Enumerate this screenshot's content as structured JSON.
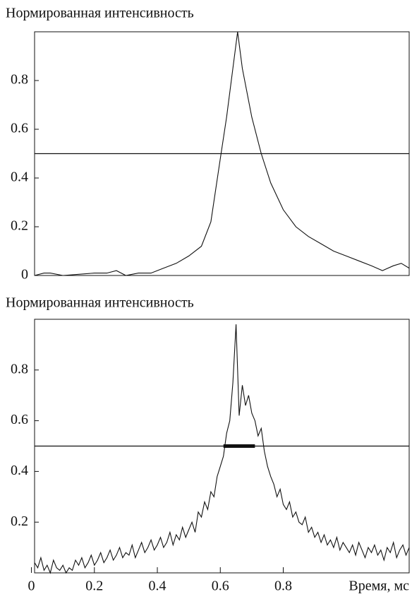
{
  "chart_data": [
    {
      "type": "line",
      "title": "Нормированная интенсивность",
      "x": [
        0.01,
        0.04,
        0.06,
        0.1,
        0.2,
        0.24,
        0.27,
        0.3,
        0.34,
        0.38,
        0.42,
        0.46,
        0.5,
        0.54,
        0.57,
        0.6,
        0.62,
        0.64,
        0.655,
        0.67,
        0.7,
        0.73,
        0.76,
        0.8,
        0.84,
        0.88,
        0.92,
        0.96,
        1.0,
        1.04,
        1.08,
        1.115,
        1.15,
        1.175,
        1.2
      ],
      "values": [
        0.0,
        0.01,
        0.01,
        0.0,
        0.01,
        0.01,
        0.02,
        0.0,
        0.01,
        0.01,
        0.03,
        0.05,
        0.08,
        0.12,
        0.22,
        0.48,
        0.65,
        0.85,
        1.0,
        0.85,
        0.65,
        0.5,
        0.38,
        0.27,
        0.2,
        0.16,
        0.13,
        0.1,
        0.08,
        0.06,
        0.04,
        0.02,
        0.04,
        0.05,
        0.03
      ],
      "color": "#111111",
      "xlim": [
        0.01,
        1.2
      ],
      "ylim": [
        0,
        1
      ],
      "yticks": [
        0,
        0.2,
        0.4,
        0.6,
        0.8
      ],
      "hline": 0.5
    },
    {
      "type": "line",
      "title": "Нормированная интенсивность",
      "x_label": "Время, мс",
      "x": [
        0.01,
        0.02,
        0.03,
        0.04,
        0.05,
        0.06,
        0.07,
        0.08,
        0.09,
        0.1,
        0.11,
        0.12,
        0.13,
        0.14,
        0.15,
        0.16,
        0.17,
        0.18,
        0.19,
        0.2,
        0.21,
        0.22,
        0.23,
        0.24,
        0.25,
        0.26,
        0.27,
        0.28,
        0.29,
        0.3,
        0.31,
        0.32,
        0.33,
        0.34,
        0.35,
        0.36,
        0.37,
        0.38,
        0.39,
        0.4,
        0.41,
        0.42,
        0.43,
        0.44,
        0.45,
        0.46,
        0.47,
        0.48,
        0.49,
        0.5,
        0.51,
        0.52,
        0.53,
        0.54,
        0.55,
        0.56,
        0.57,
        0.58,
        0.59,
        0.6,
        0.61,
        0.62,
        0.63,
        0.64,
        0.65,
        0.66,
        0.67,
        0.68,
        0.69,
        0.7,
        0.71,
        0.72,
        0.73,
        0.74,
        0.75,
        0.76,
        0.77,
        0.78,
        0.79,
        0.8,
        0.81,
        0.82,
        0.83,
        0.84,
        0.85,
        0.86,
        0.87,
        0.88,
        0.89,
        0.9,
        0.91,
        0.92,
        0.93,
        0.94,
        0.95,
        0.96,
        0.97,
        0.98,
        0.99,
        1.0,
        1.01,
        1.02,
        1.03,
        1.04,
        1.05,
        1.06,
        1.07,
        1.08,
        1.09,
        1.1,
        1.11,
        1.12,
        1.13,
        1.14,
        1.15,
        1.16,
        1.17,
        1.18,
        1.19,
        1.2
      ],
      "values": [
        0.04,
        0.02,
        0.06,
        0.01,
        0.03,
        0.0,
        0.05,
        0.02,
        0.01,
        0.03,
        0.0,
        0.02,
        0.01,
        0.05,
        0.03,
        0.06,
        0.02,
        0.04,
        0.07,
        0.03,
        0.05,
        0.08,
        0.04,
        0.06,
        0.09,
        0.05,
        0.07,
        0.1,
        0.06,
        0.08,
        0.07,
        0.11,
        0.06,
        0.09,
        0.12,
        0.08,
        0.1,
        0.13,
        0.09,
        0.11,
        0.14,
        0.1,
        0.12,
        0.16,
        0.11,
        0.15,
        0.13,
        0.18,
        0.14,
        0.17,
        0.2,
        0.16,
        0.24,
        0.22,
        0.28,
        0.25,
        0.32,
        0.3,
        0.38,
        0.42,
        0.46,
        0.55,
        0.6,
        0.75,
        0.98,
        0.62,
        0.74,
        0.66,
        0.7,
        0.63,
        0.6,
        0.54,
        0.57,
        0.48,
        0.42,
        0.38,
        0.35,
        0.3,
        0.33,
        0.27,
        0.25,
        0.28,
        0.22,
        0.24,
        0.2,
        0.19,
        0.22,
        0.16,
        0.18,
        0.14,
        0.16,
        0.12,
        0.15,
        0.11,
        0.13,
        0.1,
        0.14,
        0.09,
        0.12,
        0.1,
        0.08,
        0.11,
        0.07,
        0.12,
        0.09,
        0.06,
        0.1,
        0.08,
        0.11,
        0.07,
        0.09,
        0.05,
        0.1,
        0.08,
        0.12,
        0.06,
        0.09,
        0.11,
        0.07,
        0.1
      ],
      "color": "#111111",
      "xlim": [
        0.01,
        1.2
      ],
      "ylim": [
        0,
        1
      ],
      "xticks": [
        0,
        0.2,
        0.4,
        0.6,
        0.8
      ],
      "yticks": [
        0.2,
        0.4,
        0.6,
        0.8
      ],
      "hline": 0.5,
      "marker_span": [
        0.61,
        0.71
      ]
    }
  ]
}
